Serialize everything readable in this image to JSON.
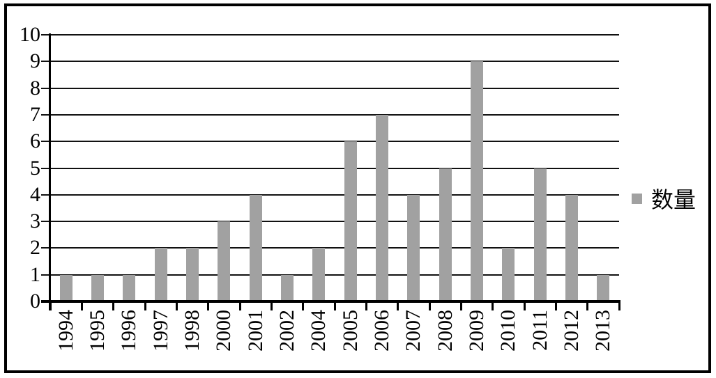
{
  "chart_data": {
    "type": "bar",
    "title": "",
    "xlabel": "",
    "ylabel": "",
    "categories": [
      "1994",
      "1995",
      "1996",
      "1997",
      "1998",
      "2000",
      "2001",
      "2002",
      "2004",
      "2005",
      "2006",
      "2007",
      "2008",
      "2009",
      "2010",
      "2011",
      "2012",
      "2013"
    ],
    "series": [
      {
        "name": "数量",
        "values": [
          1,
          1,
          1,
          2,
          2,
          3,
          4,
          1,
          2,
          6,
          7,
          4,
          5,
          9,
          2,
          5,
          4,
          1
        ]
      }
    ],
    "ylim": [
      0,
      10
    ],
    "yticks": [
      0,
      1,
      2,
      3,
      4,
      5,
      6,
      7,
      8,
      9,
      10
    ],
    "grid": "horizontal",
    "legend_position": "right",
    "bar_color": "#a1a1a1",
    "axis_color": "#000000"
  },
  "legend": {
    "items": [
      {
        "label": "数量",
        "swatch_color": "#a1a1a1"
      }
    ]
  }
}
